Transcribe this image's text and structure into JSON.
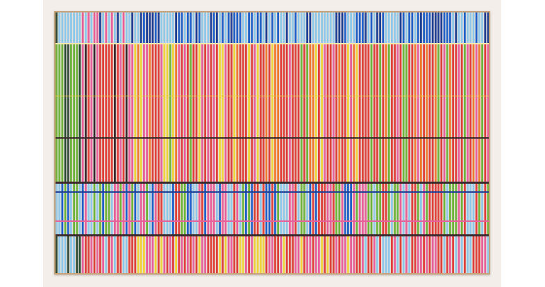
{
  "artwork": {
    "wall_color": "#f3eeea",
    "frame_color": "#c9a27a",
    "palette": {
      "red": "#e0403a",
      "pink": "#e8609a",
      "navy": "#1f3f95",
      "yellow": "#f0d23a",
      "green": "#6fb43a",
      "dark_green": "#2c4a32",
      "light_blue": "#8fc7e8",
      "blue": "#2060c8",
      "dark": "#3a2a2e",
      "orange": "#f07a30"
    }
  }
}
